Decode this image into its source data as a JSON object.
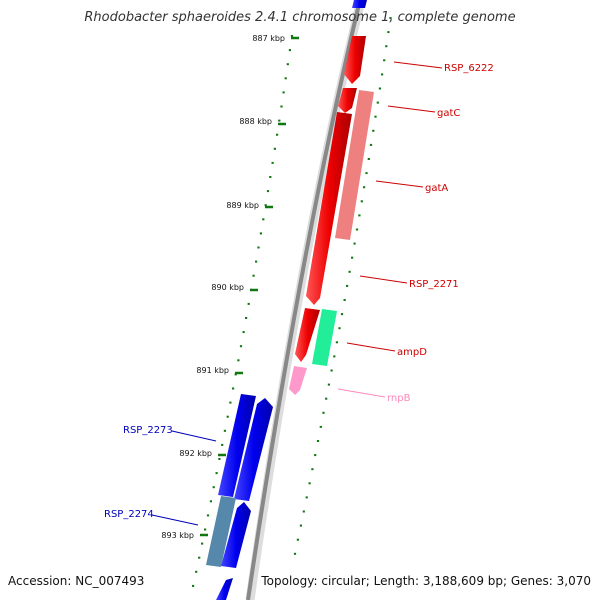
{
  "title": "Rhodobacter sphaeroides 2.4.1 chromosome 1, complete genome",
  "footer": {
    "accession": "Accession: NC_007493",
    "summary": "Topology: circular; Length: 3,188,609 bp; Genes: 3,070"
  },
  "ticks": [
    {
      "label": "887 kbp"
    },
    {
      "label": "888 kbp"
    },
    {
      "label": "889 kbp"
    },
    {
      "label": "890 kbp"
    },
    {
      "label": "891 kbp"
    },
    {
      "label": "892 kbp"
    },
    {
      "label": "893 kbp"
    }
  ],
  "genes": [
    {
      "label": "RSP_6222",
      "strand": "forward",
      "color": "#ee0000"
    },
    {
      "label": "gatC",
      "strand": "forward",
      "color": "#ee0000"
    },
    {
      "label": "gatA",
      "strand": "forward",
      "color": "#ee8080"
    },
    {
      "label": "RSP_2271",
      "strand": "forward",
      "color": "#ee0000"
    },
    {
      "label": "ampD",
      "strand": "forward",
      "color": "#22ee99"
    },
    {
      "label": "rnpB",
      "strand": "forward",
      "color": "#ff99cc"
    },
    {
      "label": "RSP_2273",
      "strand": "reverse",
      "color": "#0000ee"
    },
    {
      "label": "RSP_2274",
      "strand": "reverse",
      "color": "#5588aa"
    }
  ],
  "colors": {
    "backbone": "#999999",
    "tick": "#117711",
    "forward_label": "#cc0000",
    "reverse_label": "#0000bb",
    "rna_label": "#ff88bb"
  }
}
